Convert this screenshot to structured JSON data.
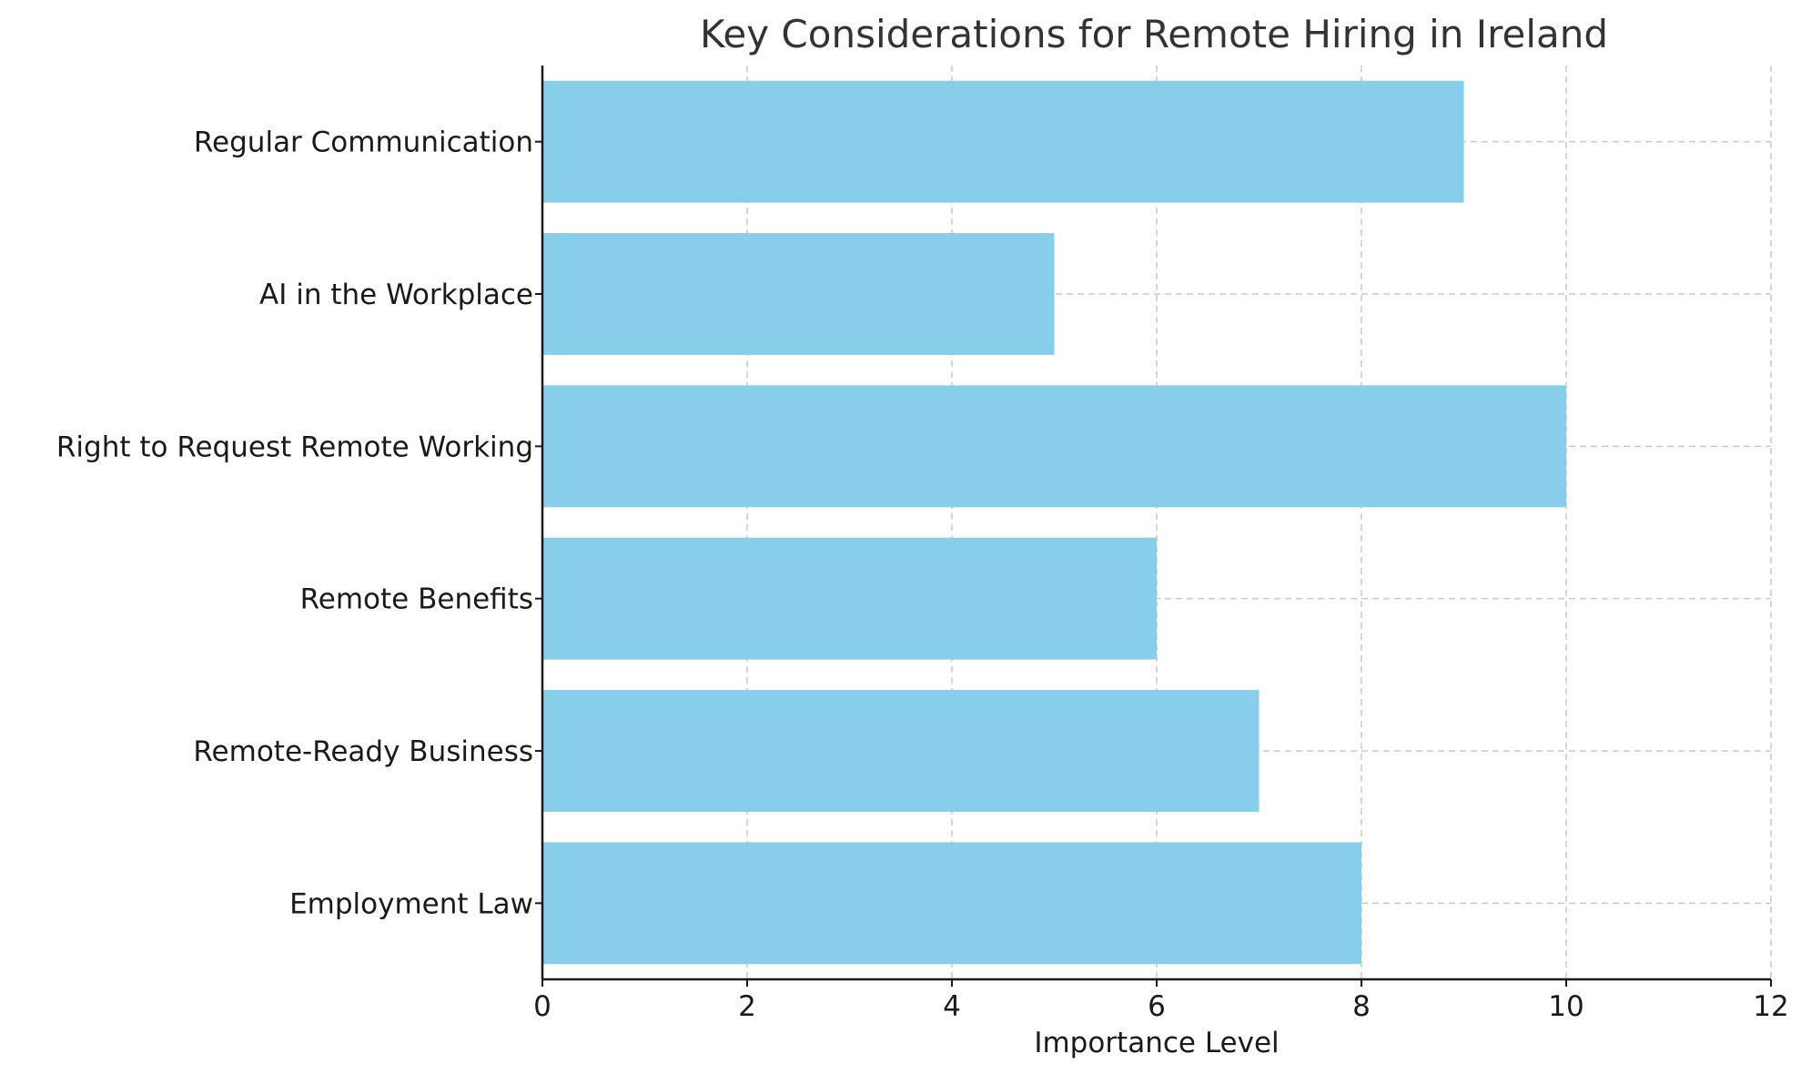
{
  "chart_data": {
    "type": "bar",
    "orientation": "horizontal",
    "title": "Key Considerations for Remote Hiring in Ireland",
    "xlabel": "Importance Level",
    "ylabel": "",
    "categories": [
      "Employment Law",
      "Remote-Ready Business",
      "Remote Benefits",
      "Right to Request Remote Working",
      "AI in the Workplace",
      "Regular Communication"
    ],
    "values": [
      8,
      7,
      6,
      10,
      5,
      9
    ],
    "xlim": [
      0,
      12
    ],
    "xticks": [
      "0",
      "2",
      "4",
      "6",
      "8",
      "10",
      "12"
    ],
    "grid": true,
    "bar_color": "#87ceeb"
  }
}
